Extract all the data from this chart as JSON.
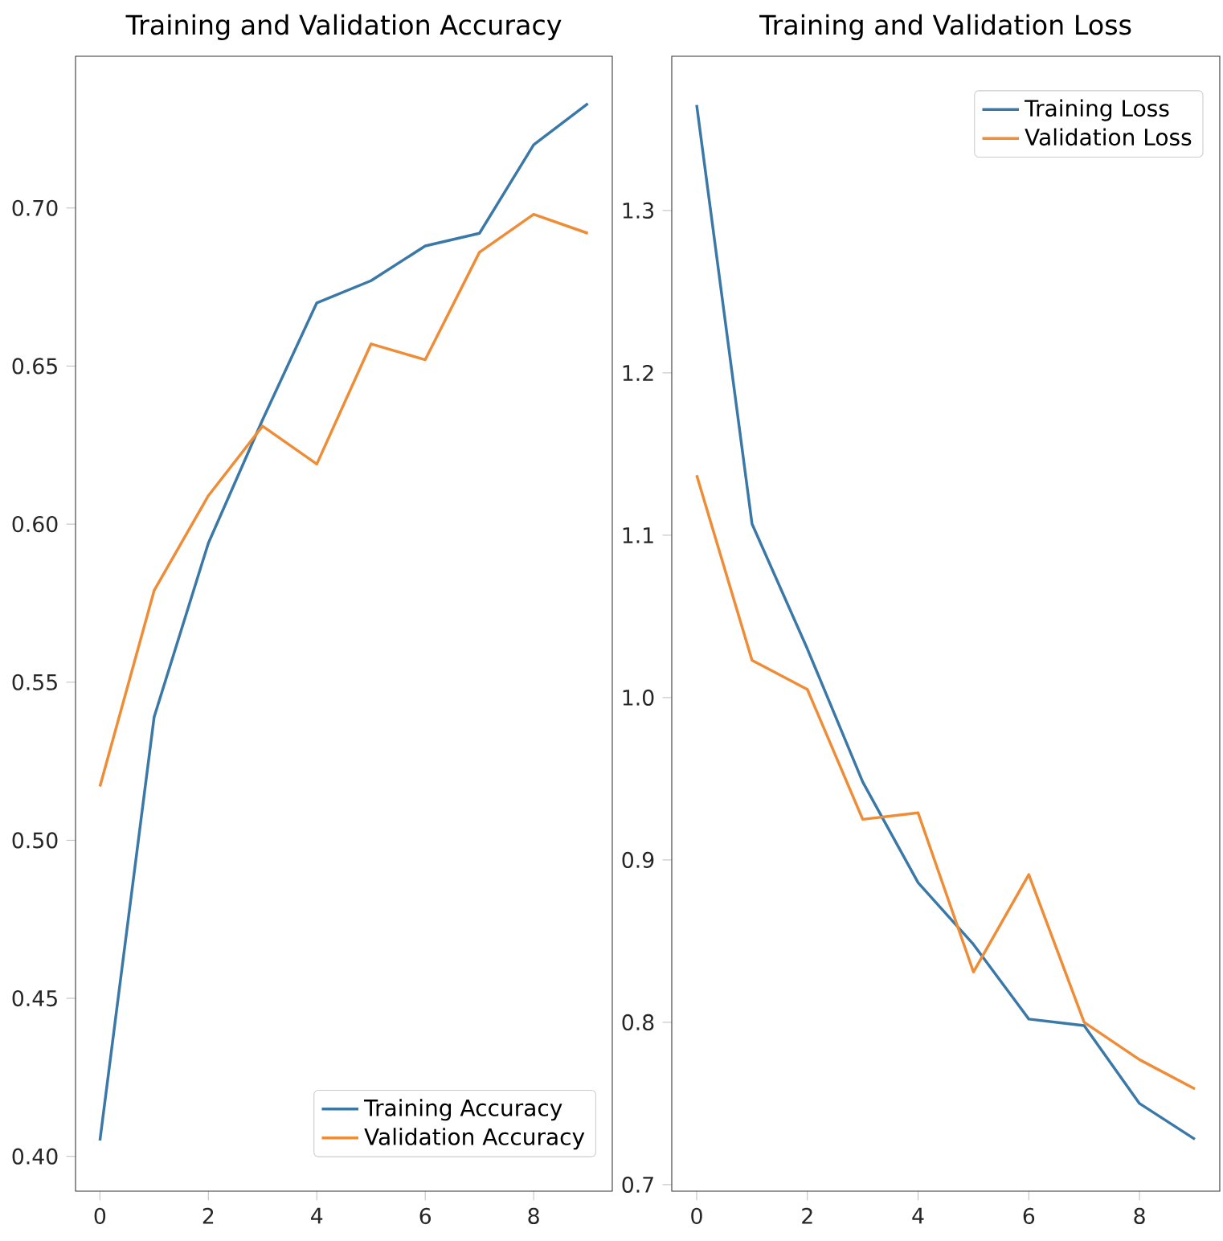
{
  "chart_data": [
    {
      "type": "line",
      "title": "Training and Validation Accuracy",
      "x": [
        0,
        1,
        2,
        3,
        4,
        5,
        6,
        7,
        8,
        9
      ],
      "xlim": [
        -0.45,
        9.45
      ],
      "xticks": [
        0,
        2,
        4,
        6,
        8
      ],
      "ylim": [
        0.389,
        0.748
      ],
      "yticks": [
        {
          "value": 0.4,
          "label": "0.40"
        },
        {
          "value": 0.45,
          "label": "0.45"
        },
        {
          "value": 0.5,
          "label": "0.50"
        },
        {
          "value": 0.55,
          "label": "0.55"
        },
        {
          "value": 0.6,
          "label": "0.60"
        },
        {
          "value": 0.65,
          "label": "0.65"
        },
        {
          "value": 0.7,
          "label": "0.70"
        }
      ],
      "series": [
        {
          "name": "Training Accuracy",
          "color": "#3a78a8",
          "values": [
            0.405,
            0.539,
            0.594,
            0.633,
            0.67,
            0.677,
            0.688,
            0.692,
            0.72,
            0.733
          ]
        },
        {
          "name": "Validation Accuracy",
          "color": "#ef8c36",
          "values": [
            0.517,
            0.579,
            0.609,
            0.631,
            0.619,
            0.657,
            0.652,
            0.686,
            0.698,
            0.692
          ]
        }
      ],
      "legend": "bottom right",
      "grid": false
    },
    {
      "type": "line",
      "title": "Training and Validation Loss",
      "x": [
        0,
        1,
        2,
        3,
        4,
        5,
        6,
        7,
        8,
        9
      ],
      "xlim": [
        -0.45,
        9.45
      ],
      "xticks": [
        0,
        2,
        4,
        6,
        8
      ],
      "ylim": [
        0.696,
        1.395
      ],
      "yticks": [
        {
          "value": 0.7,
          "label": "0.7"
        },
        {
          "value": 0.8,
          "label": "0.8"
        },
        {
          "value": 0.9,
          "label": "0.9"
        },
        {
          "value": 1.0,
          "label": "1.0"
        },
        {
          "value": 1.1,
          "label": "1.1"
        },
        {
          "value": 1.2,
          "label": "1.2"
        },
        {
          "value": 1.3,
          "label": "1.3"
        }
      ],
      "series": [
        {
          "name": "Training Loss",
          "color": "#3a78a8",
          "values": [
            1.365,
            1.107,
            1.03,
            0.948,
            0.886,
            0.848,
            0.802,
            0.798,
            0.75,
            0.728
          ]
        },
        {
          "name": "Validation Loss",
          "color": "#ef8c36",
          "values": [
            1.137,
            1.023,
            1.005,
            0.925,
            0.929,
            0.831,
            0.891,
            0.8,
            0.777,
            0.759
          ]
        }
      ],
      "legend": "top right",
      "grid": false
    }
  ]
}
